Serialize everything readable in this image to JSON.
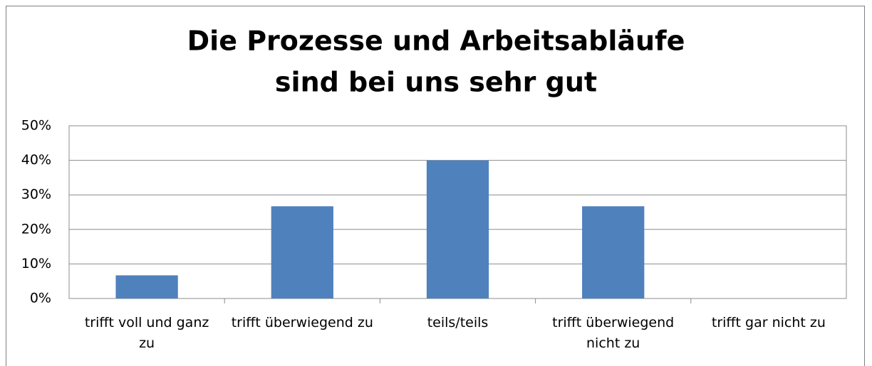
{
  "chart_data": {
    "type": "bar",
    "title": [
      "Die Prozesse und Arbeitsabläufe",
      "sind bei uns sehr gut"
    ],
    "categories": [
      "trifft voll und ganz zu",
      "trifft überwiegend zu",
      "teils/teils",
      "trifft überwiegend nicht zu",
      "trifft gar nicht zu"
    ],
    "values": [
      6.7,
      26.7,
      40,
      26.7,
      0
    ],
    "color": "#4f81bd",
    "ylim": [
      0,
      50
    ],
    "yticks": [
      {
        "value": 0,
        "label": "0%"
      },
      {
        "value": 10,
        "label": "10%"
      },
      {
        "value": 20,
        "label": "20%"
      },
      {
        "value": 30,
        "label": "30%"
      },
      {
        "value": 40,
        "label": "40%"
      },
      {
        "value": 50,
        "label": "50%"
      }
    ],
    "grid": true
  }
}
